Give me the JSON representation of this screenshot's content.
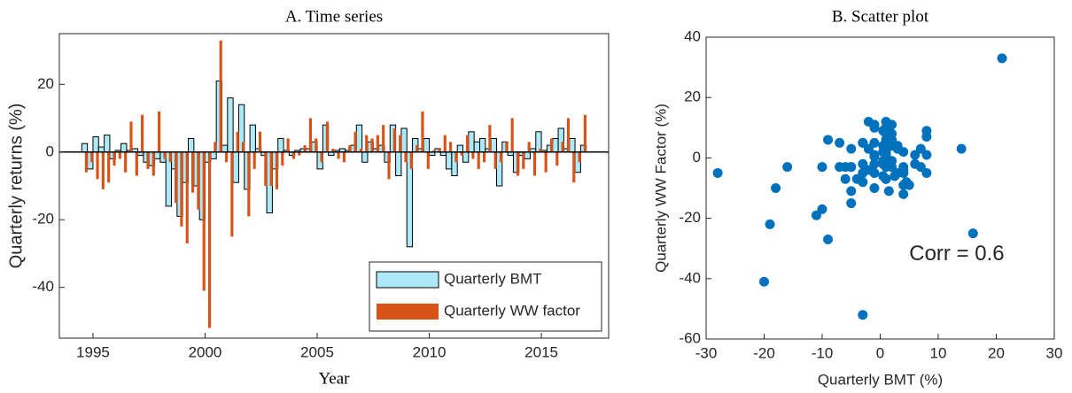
{
  "chart_data": [
    {
      "type": "bar",
      "title": "A. Time series",
      "xlabel": "Year",
      "ylabel": "Quarterly returns (%)",
      "x": [
        1994.5,
        1994.75,
        1995,
        1995.25,
        1995.5,
        1995.75,
        1996,
        1996.25,
        1996.5,
        1996.75,
        1997,
        1997.25,
        1997.5,
        1997.75,
        1998,
        1998.25,
        1998.5,
        1998.75,
        1999,
        1999.25,
        1999.5,
        1999.75,
        2000,
        2000.25,
        2000.5,
        2000.75,
        2001,
        2001.25,
        2001.5,
        2001.75,
        2002,
        2002.25,
        2002.5,
        2002.75,
        2003,
        2003.25,
        2003.5,
        2003.75,
        2004,
        2004.25,
        2004.5,
        2004.75,
        2005,
        2005.25,
        2005.5,
        2005.75,
        2006,
        2006.25,
        2006.5,
        2006.75,
        2007,
        2007.25,
        2007.5,
        2007.75,
        2008,
        2008.25,
        2008.5,
        2008.75,
        2009,
        2009.25,
        2009.5,
        2009.75,
        2010,
        2010.25,
        2010.5,
        2010.75,
        2011,
        2011.25,
        2011.5,
        2011.75,
        2012,
        2012.25,
        2012.5,
        2012.75,
        2013,
        2013.25,
        2013.5,
        2013.75,
        2014,
        2014.25,
        2014.5,
        2014.75,
        2015,
        2015.25,
        2015.5,
        2015.75,
        2016,
        2016.25,
        2016.5,
        2016.75
      ],
      "series": [
        {
          "name": "Quarterly BMT",
          "color": "#aee9f8",
          "values": [
            2.5,
            -5,
            4.5,
            1.5,
            5,
            -2,
            0.5,
            2.5,
            0.5,
            1,
            -1,
            -3,
            -4,
            -2,
            -3,
            -16,
            -5,
            -19,
            -9,
            4,
            -10,
            -20,
            -3,
            -2,
            21,
            2,
            16,
            -9,
            14,
            -11,
            8,
            1,
            -1,
            -18,
            -5,
            4,
            0.5,
            -1,
            0.5,
            1,
            1,
            3,
            -5,
            8,
            -1,
            0.5,
            1,
            0.5,
            2,
            8,
            -3,
            3,
            1,
            2,
            -3,
            8,
            -7,
            7,
            -28,
            4,
            1,
            4,
            -1,
            1,
            -1,
            -5,
            -7,
            2,
            -3,
            6,
            3,
            4,
            1,
            4,
            -10,
            3,
            -1,
            -6,
            -1,
            -2,
            1,
            6,
            0.5,
            2,
            4,
            7,
            1,
            4,
            -6,
            2
          ]
        },
        {
          "name": "Quarterly WW factor",
          "color": "#d95319",
          "values": [
            -6,
            -3,
            -8,
            -11,
            -9,
            -4,
            -2,
            -6,
            9,
            -7,
            11,
            -5,
            -7,
            12,
            -2,
            -3,
            -15,
            -22,
            -27,
            -12,
            -17,
            -41,
            -52,
            3,
            33,
            -3,
            -25,
            6,
            3,
            -19,
            -5,
            6,
            -10,
            -10,
            -11,
            -4,
            4,
            -2,
            -1,
            2,
            10,
            4,
            -3,
            9,
            1,
            -2,
            -3,
            2,
            6,
            1,
            5,
            4,
            5,
            8,
            -8,
            7,
            5,
            -3,
            -5,
            2,
            12,
            -5,
            0.5,
            1,
            5,
            3,
            -3,
            -1,
            5,
            -2,
            -5,
            -3,
            8,
            -5,
            -3,
            3,
            10,
            -7,
            -5,
            3,
            -7,
            1,
            -6,
            4,
            -4,
            3,
            10,
            -9,
            -3,
            11
          ]
        }
      ],
      "xlim": [
        1993.5,
        2018
      ],
      "xticks": [
        1995,
        2000,
        2005,
        2010,
        2015
      ],
      "ylim": [
        -55,
        35
      ],
      "yticks": [
        -40,
        -20,
        0,
        20
      ],
      "legend": "lower right"
    },
    {
      "type": "scatter",
      "title": "B. Scatter plot",
      "xlabel": "Quarterly BMT (%)",
      "ylabel": "Quarterly WW Factor (%)",
      "annotation": "Corr = 0.6",
      "color": "#0072bd",
      "x": [
        2.5,
        -5,
        4.5,
        1.5,
        5,
        -2,
        0.5,
        2.5,
        0.5,
        1,
        -1,
        -3,
        -4,
        -2,
        -3,
        -16,
        -5,
        -19,
        -9,
        4,
        -10,
        -20,
        -3,
        -2,
        21,
        2,
        16,
        -9,
        14,
        -11,
        8,
        1,
        -1,
        -18,
        -5,
        4,
        0.5,
        -1,
        0.5,
        1,
        1,
        3,
        -5,
        8,
        -1,
        0.5,
        1,
        0.5,
        2,
        8,
        -3,
        3,
        1,
        2,
        -3,
        8,
        -7,
        7,
        -28,
        4,
        1,
        4,
        -1,
        1,
        -1,
        -5,
        -7,
        2,
        -3,
        6,
        3,
        4,
        1,
        4,
        -10,
        3,
        -1,
        -6,
        -1,
        -2,
        1,
        6,
        0.5,
        2,
        4,
        7,
        1,
        4,
        -6,
        2
      ],
      "values": [
        -6,
        -3,
        -8,
        -11,
        -9,
        -4,
        -2,
        -6,
        9,
        -7,
        11,
        -5,
        -7,
        12,
        -2,
        -3,
        -15,
        -22,
        -27,
        -12,
        -17,
        -41,
        -52,
        3,
        33,
        -3,
        -25,
        6,
        3,
        -19,
        -5,
        6,
        -10,
        -10,
        -11,
        -4,
        4,
        -2,
        -1,
        2,
        10,
        4,
        -3,
        9,
        1,
        -2,
        -3,
        2,
        6,
        1,
        5,
        4,
        5,
        8,
        -8,
        7,
        5,
        -3,
        -5,
        2,
        12,
        -5,
        0.5,
        1,
        5,
        3,
        -3,
        -1,
        5,
        -2,
        -5,
        -3,
        8,
        -5,
        -3,
        3,
        10,
        -7,
        -5,
        3,
        -7,
        1,
        -6,
        4,
        -4,
        3,
        10,
        -9,
        -3,
        11
      ],
      "xlim": [
        -30,
        30
      ],
      "xticks": [
        -30,
        -20,
        -10,
        0,
        10,
        20,
        30
      ],
      "ylim": [
        -60,
        40
      ],
      "yticks": [
        -60,
        -40,
        -20,
        0,
        20,
        40
      ]
    }
  ]
}
